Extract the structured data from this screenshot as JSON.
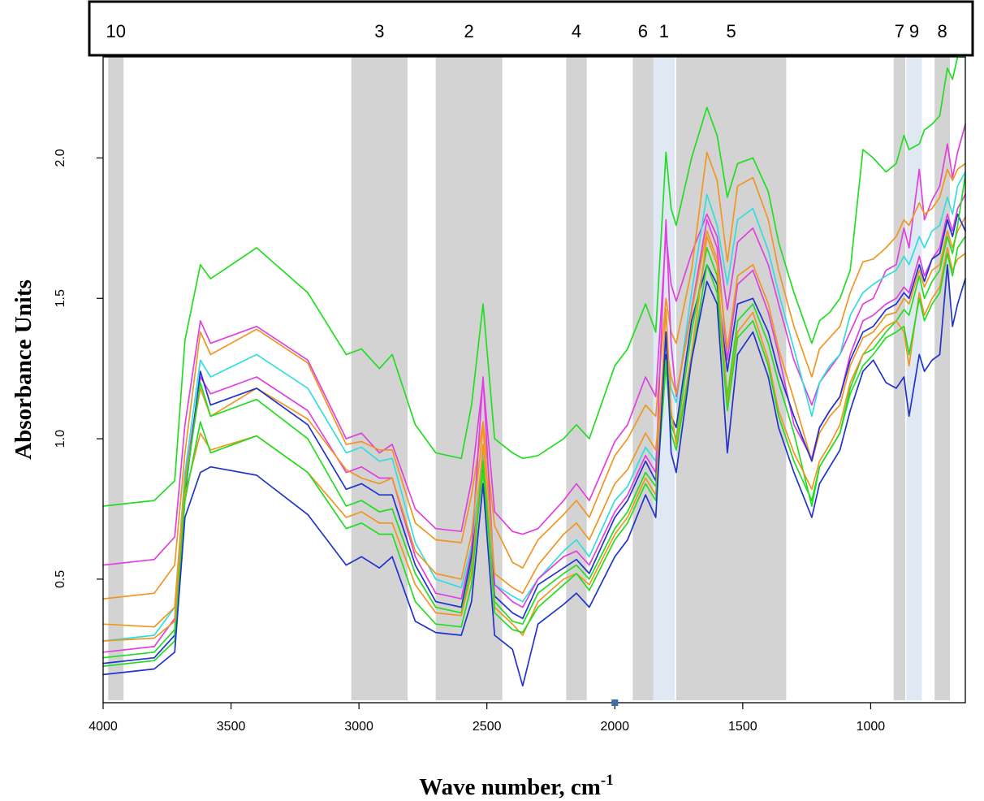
{
  "chart_data": {
    "type": "line",
    "title": "",
    "xlabel": "Wave number, cm",
    "xlabel_superscript": "-1",
    "ylabel": "Absorbance Units",
    "xlim": [
      4000,
      630
    ],
    "ylim": [
      0.06,
      2.36
    ],
    "x_reversed": true,
    "grid": false,
    "legend": "none",
    "x_ticks": [
      4000,
      3500,
      3000,
      2500,
      2000,
      1500,
      1000
    ],
    "x_tick_labels": [
      "4000",
      "3500",
      "3000",
      "2500",
      "2000",
      "1500",
      "1000"
    ],
    "y_ticks": [
      0.5,
      1.0,
      1.5,
      2.0
    ],
    "y_tick_labels": [
      "0.5",
      "1.0",
      "1.5",
      "2.0"
    ],
    "bands": [
      {
        "label": "10",
        "from": 3980,
        "to": 3920,
        "color": "#d3d3d3"
      },
      {
        "label": "3",
        "from": 3030,
        "to": 2810,
        "color": "#d3d3d3"
      },
      {
        "label": "2",
        "from": 2700,
        "to": 2440,
        "color": "#d3d3d3"
      },
      {
        "label": "4",
        "from": 2190,
        "to": 2110,
        "color": "#d3d3d3"
      },
      {
        "label": "6",
        "from": 1930,
        "to": 1850,
        "color": "#d3d3d3"
      },
      {
        "label": "1",
        "from": 1850,
        "to": 1765,
        "color": "#dfe8f3"
      },
      {
        "label": "5",
        "from": 1760,
        "to": 1330,
        "color": "#d3d3d3"
      },
      {
        "label": "7",
        "from": 910,
        "to": 865,
        "color": "#d3d3d3"
      },
      {
        "label": "9",
        "from": 860,
        "to": 800,
        "color": "#dfe8f3"
      },
      {
        "label": "8",
        "from": 750,
        "to": 690,
        "color": "#d3d3d3"
      }
    ],
    "x": [
      4000,
      3800,
      3720,
      3680,
      3620,
      3580,
      3400,
      3200,
      3050,
      2990,
      2920,
      2870,
      2780,
      2700,
      2600,
      2560,
      2515,
      2470,
      2400,
      2360,
      2300,
      2200,
      2150,
      2100,
      2000,
      1950,
      1880,
      1840,
      1800,
      1780,
      1760,
      1700,
      1640,
      1600,
      1560,
      1520,
      1460,
      1400,
      1360,
      1300,
      1230,
      1200,
      1160,
      1120,
      1080,
      1030,
      990,
      940,
      900,
      870,
      850,
      810,
      790,
      760,
      730,
      700,
      680,
      660,
      630
    ],
    "series": [
      {
        "color": "#22dd22",
        "values": [
          0.76,
          0.78,
          0.85,
          1.35,
          1.62,
          1.57,
          1.68,
          1.52,
          1.3,
          1.32,
          1.25,
          1.3,
          1.05,
          0.95,
          0.93,
          1.12,
          1.48,
          1.0,
          0.95,
          0.93,
          0.94,
          1.0,
          1.05,
          1.0,
          1.26,
          1.32,
          1.48,
          1.38,
          2.02,
          1.82,
          1.76,
          2.0,
          2.18,
          2.08,
          1.86,
          1.98,
          2.0,
          1.88,
          1.7,
          1.52,
          1.34,
          1.42,
          1.45,
          1.5,
          1.6,
          2.03,
          2.0,
          1.95,
          1.98,
          2.08,
          2.03,
          2.05,
          2.1,
          2.12,
          2.15,
          2.32,
          2.28,
          2.36,
          2.36
        ]
      },
      {
        "color": "#e040e0",
        "values": [
          0.55,
          0.57,
          0.65,
          1.05,
          1.42,
          1.34,
          1.4,
          1.28,
          1.0,
          1.02,
          0.95,
          0.98,
          0.75,
          0.68,
          0.67,
          0.85,
          1.21,
          0.74,
          0.67,
          0.66,
          0.68,
          0.78,
          0.84,
          0.78,
          0.99,
          1.05,
          1.22,
          1.15,
          1.73,
          1.55,
          1.49,
          1.66,
          1.8,
          1.72,
          1.46,
          1.7,
          1.75,
          1.62,
          1.48,
          1.28,
          1.12,
          1.2,
          1.25,
          1.3,
          1.38,
          1.48,
          1.5,
          1.6,
          1.62,
          1.75,
          1.68,
          1.96,
          1.78,
          1.85,
          1.9,
          2.05,
          1.93,
          2.02,
          2.12
        ]
      },
      {
        "color": "#f09622",
        "values": [
          0.43,
          0.45,
          0.55,
          0.95,
          1.38,
          1.3,
          1.39,
          1.27,
          0.98,
          0.99,
          0.96,
          0.96,
          0.7,
          0.64,
          0.63,
          0.8,
          1.06,
          0.69,
          0.56,
          0.54,
          0.64,
          0.73,
          0.78,
          0.72,
          0.94,
          1.0,
          1.12,
          1.08,
          1.5,
          1.38,
          1.34,
          1.6,
          2.02,
          1.92,
          1.63,
          1.9,
          1.93,
          1.78,
          1.6,
          1.4,
          1.22,
          1.32,
          1.36,
          1.4,
          1.52,
          1.63,
          1.64,
          1.68,
          1.72,
          1.78,
          1.76,
          1.84,
          1.8,
          1.82,
          1.86,
          1.96,
          1.92,
          1.96,
          1.98
        ]
      },
      {
        "color": "#33dddd",
        "values": [
          0.28,
          0.3,
          0.4,
          0.88,
          1.28,
          1.22,
          1.3,
          1.18,
          0.95,
          0.97,
          0.92,
          0.93,
          0.63,
          0.5,
          0.47,
          0.62,
          0.95,
          0.48,
          0.44,
          0.42,
          0.5,
          0.6,
          0.64,
          0.58,
          0.78,
          0.83,
          0.97,
          0.92,
          1.35,
          1.18,
          1.13,
          1.52,
          1.87,
          1.76,
          1.55,
          1.78,
          1.82,
          1.67,
          1.52,
          1.32,
          1.08,
          1.2,
          1.26,
          1.3,
          1.44,
          1.52,
          1.55,
          1.58,
          1.6,
          1.65,
          1.62,
          1.72,
          1.68,
          1.74,
          1.76,
          1.86,
          1.8,
          1.9,
          1.95
        ]
      },
      {
        "color": "#e040e0",
        "values": [
          0.24,
          0.26,
          0.36,
          0.85,
          1.22,
          1.16,
          1.22,
          1.1,
          0.88,
          0.9,
          0.86,
          0.86,
          0.58,
          0.45,
          0.43,
          0.6,
          1.22,
          0.48,
          0.42,
          0.4,
          0.5,
          0.58,
          0.6,
          0.55,
          0.74,
          0.8,
          0.94,
          0.88,
          1.78,
          1.34,
          1.15,
          1.46,
          1.78,
          1.68,
          1.28,
          1.55,
          1.6,
          1.45,
          1.3,
          1.05,
          0.93,
          1.04,
          1.1,
          1.15,
          1.3,
          1.42,
          1.44,
          1.48,
          1.5,
          1.54,
          1.52,
          1.65,
          1.58,
          1.64,
          1.68,
          1.8,
          1.74,
          1.82,
          1.87
        ]
      },
      {
        "color": "#f09622",
        "values": [
          0.34,
          0.33,
          0.4,
          0.85,
          1.18,
          1.08,
          1.18,
          1.07,
          0.89,
          0.86,
          0.84,
          0.86,
          0.6,
          0.52,
          0.5,
          0.66,
          1.04,
          0.52,
          0.47,
          0.45,
          0.55,
          0.66,
          0.7,
          0.64,
          0.84,
          0.89,
          1.02,
          0.96,
          1.34,
          1.22,
          1.16,
          1.45,
          1.74,
          1.64,
          1.32,
          1.58,
          1.62,
          1.48,
          1.32,
          1.14,
          0.92,
          1.02,
          1.08,
          1.12,
          1.26,
          1.36,
          1.38,
          1.44,
          1.45,
          1.5,
          1.48,
          1.6,
          1.54,
          1.6,
          1.62,
          1.74,
          1.68,
          1.74,
          1.79
        ]
      },
      {
        "color": "#2233cc",
        "values": [
          0.2,
          0.22,
          0.3,
          0.8,
          1.24,
          1.12,
          1.18,
          1.05,
          0.82,
          0.84,
          0.8,
          0.8,
          0.55,
          0.42,
          0.4,
          0.58,
          0.9,
          0.44,
          0.38,
          0.36,
          0.48,
          0.54,
          0.57,
          0.52,
          0.72,
          0.78,
          0.92,
          0.85,
          1.3,
          1.08,
          1.04,
          1.42,
          1.62,
          1.55,
          1.24,
          1.48,
          1.5,
          1.38,
          1.24,
          1.08,
          0.92,
          1.04,
          1.1,
          1.15,
          1.28,
          1.38,
          1.4,
          1.46,
          1.48,
          1.52,
          1.5,
          1.62,
          1.56,
          1.64,
          1.66,
          1.78,
          1.72,
          1.8,
          1.74
        ]
      },
      {
        "color": "#22dd22",
        "values": [
          0.22,
          0.24,
          0.32,
          0.82,
          1.2,
          1.08,
          1.14,
          1.0,
          0.76,
          0.78,
          0.74,
          0.75,
          0.52,
          0.4,
          0.38,
          0.55,
          0.88,
          0.42,
          0.35,
          0.34,
          0.45,
          0.52,
          0.55,
          0.5,
          0.68,
          0.74,
          0.88,
          0.83,
          1.28,
          1.05,
          1.0,
          1.38,
          1.68,
          1.58,
          1.15,
          1.42,
          1.48,
          1.34,
          1.2,
          1.02,
          0.76,
          0.9,
          0.96,
          1.02,
          1.18,
          1.3,
          1.32,
          1.38,
          1.42,
          1.46,
          1.44,
          1.58,
          1.5,
          1.56,
          1.6,
          1.72,
          1.66,
          1.76,
          1.94
        ]
      },
      {
        "color": "#f09622",
        "values": [
          0.28,
          0.29,
          0.35,
          0.8,
          1.02,
          0.96,
          1.01,
          0.88,
          0.72,
          0.74,
          0.7,
          0.7,
          0.48,
          0.38,
          0.37,
          0.52,
          0.98,
          0.4,
          0.34,
          0.3,
          0.42,
          0.5,
          0.52,
          0.48,
          0.66,
          0.72,
          0.86,
          0.8,
          1.46,
          1.1,
          0.98,
          1.3,
          1.72,
          1.62,
          1.12,
          1.38,
          1.45,
          1.28,
          1.1,
          0.95,
          0.82,
          0.92,
          0.98,
          1.05,
          1.2,
          1.3,
          1.35,
          1.4,
          1.42,
          1.38,
          1.26,
          1.52,
          1.44,
          1.5,
          1.54,
          1.68,
          1.6,
          1.64,
          1.66
        ]
      },
      {
        "color": "#22dd22",
        "values": [
          0.19,
          0.21,
          0.28,
          0.78,
          1.06,
          0.95,
          1.01,
          0.88,
          0.68,
          0.7,
          0.66,
          0.66,
          0.42,
          0.34,
          0.33,
          0.48,
          0.92,
          0.38,
          0.32,
          0.31,
          0.4,
          0.48,
          0.52,
          0.46,
          0.64,
          0.7,
          0.84,
          0.78,
          1.26,
          1.02,
          0.96,
          1.28,
          1.62,
          1.52,
          1.1,
          1.36,
          1.42,
          1.26,
          1.08,
          0.92,
          0.78,
          0.9,
          0.96,
          1.02,
          1.16,
          1.26,
          1.3,
          1.36,
          1.38,
          1.4,
          1.3,
          1.5,
          1.42,
          1.48,
          1.52,
          1.66,
          1.58,
          1.68,
          1.72
        ]
      },
      {
        "color": "#2233cc",
        "values": [
          0.16,
          0.18,
          0.24,
          0.72,
          0.88,
          0.9,
          0.87,
          0.73,
          0.55,
          0.58,
          0.54,
          0.58,
          0.35,
          0.31,
          0.3,
          0.42,
          0.84,
          0.3,
          0.25,
          0.12,
          0.34,
          0.41,
          0.45,
          0.4,
          0.58,
          0.64,
          0.8,
          0.72,
          1.38,
          0.95,
          0.88,
          1.28,
          1.56,
          1.48,
          0.95,
          1.3,
          1.38,
          1.22,
          1.04,
          0.88,
          0.72,
          0.84,
          0.9,
          0.96,
          1.1,
          1.24,
          1.28,
          1.2,
          1.18,
          1.22,
          1.08,
          1.3,
          1.24,
          1.28,
          1.3,
          1.62,
          1.4,
          1.48,
          1.57
        ]
      }
    ],
    "annotations": [
      {
        "type": "marker",
        "x": 2000,
        "y": 0.06,
        "color": "#3a6ea5"
      }
    ]
  }
}
